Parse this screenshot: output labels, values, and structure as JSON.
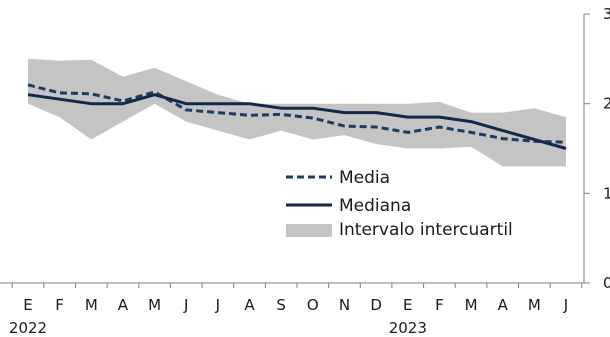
{
  "chart_data": {
    "type": "line",
    "x_labels": [
      "E",
      "F",
      "M",
      "A",
      "M",
      "J",
      "J",
      "A",
      "S",
      "O",
      "N",
      "D",
      "E",
      "F",
      "M",
      "A",
      "M",
      "J"
    ],
    "year_labels": [
      {
        "label": "2022",
        "index": 0
      },
      {
        "label": "2023",
        "index": 12
      }
    ],
    "y_ticks": [
      "0",
      "1",
      "2",
      "3"
    ],
    "ylim": [
      0,
      3
    ],
    "y_axis_position": "right",
    "grid": false,
    "series": [
      {
        "name": "Media",
        "style": "dashed",
        "color": "#1f3b63",
        "values": [
          2.21,
          2.12,
          2.11,
          2.03,
          2.13,
          1.93,
          1.9,
          1.87,
          1.88,
          1.84,
          1.75,
          1.74,
          1.68,
          1.74,
          1.68,
          1.61,
          1.58,
          1.57
        ]
      },
      {
        "name": "Mediana",
        "style": "solid",
        "color": "#12294a",
        "values": [
          2.1,
          2.05,
          2.0,
          2.0,
          2.1,
          2.0,
          2.0,
          2.0,
          1.95,
          1.95,
          1.9,
          1.9,
          1.85,
          1.85,
          1.8,
          1.7,
          1.6,
          1.5
        ]
      }
    ],
    "band": {
      "name": "Intervalo intercuartil",
      "color": "#c4c4c4",
      "upper": [
        2.5,
        2.48,
        2.49,
        2.3,
        2.4,
        2.25,
        2.1,
        2.0,
        2.0,
        2.0,
        2.0,
        2.0,
        2.0,
        2.02,
        1.9,
        1.9,
        1.95,
        1.85
      ],
      "lower": [
        2.0,
        1.85,
        1.6,
        1.8,
        2.0,
        1.8,
        1.7,
        1.6,
        1.7,
        1.6,
        1.65,
        1.55,
        1.5,
        1.5,
        1.52,
        1.3,
        1.3,
        1.3
      ]
    },
    "legend_position": "center-right"
  }
}
